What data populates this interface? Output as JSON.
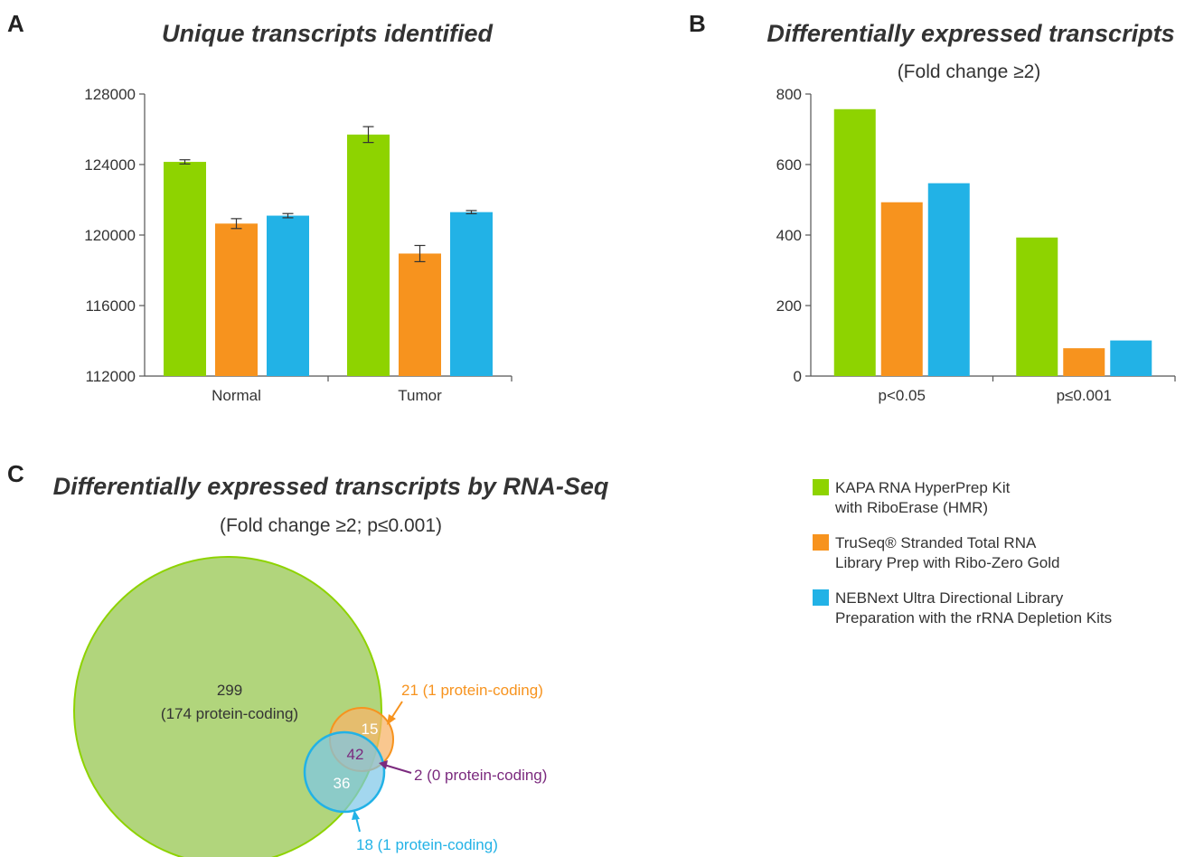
{
  "colors": {
    "kapa": "#8ed300",
    "truseq": "#f7931e",
    "nebnext": "#22b2e6",
    "purple": "#7b2a7e",
    "axis": "#555555"
  },
  "panel_a": {
    "letter": "A",
    "title": "Unique transcripts identified"
  },
  "panel_b": {
    "letter": "B",
    "title": "Differentially expressed transcripts",
    "subtitle": "(Fold change ≥2)"
  },
  "panel_c": {
    "letter": "C",
    "title": "Differentially expressed transcripts by RNA-Seq",
    "subtitle": "(Fold change ≥2; p≤0.001)",
    "kapa_count": "299",
    "kapa_sub": "(174 protein-coding)",
    "truseq_overlap": "15",
    "all_overlap": "42",
    "nebnext_overlap": "36",
    "truseq_unique": "21 (1 protein-coding)",
    "pair_only": "2 (0 protein-coding)",
    "nebnext_unique": "18 (1 protein-coding)"
  },
  "legend": [
    {
      "key": "kapa",
      "lines": [
        "KAPA RNA HyperPrep Kit",
        "with RiboErase (HMR)"
      ]
    },
    {
      "key": "truseq",
      "lines": [
        "TruSeq® Stranded Total RNA",
        "Library Prep with Ribo-Zero Gold"
      ]
    },
    {
      "key": "nebnext",
      "lines": [
        "NEBNext Ultra Directional Library",
        "Preparation with the rRNA Depletion Kits"
      ]
    }
  ],
  "chart_data": [
    {
      "type": "bar",
      "title": "Unique transcripts identified",
      "categories": [
        "Normal",
        "Tumor"
      ],
      "ylim": [
        112000,
        128000
      ],
      "yticks": [
        112000,
        116000,
        120000,
        124000,
        128000
      ],
      "series": [
        {
          "key": "kapa",
          "values": [
            124150,
            125700
          ],
          "errors": [
            120,
            450
          ]
        },
        {
          "key": "truseq",
          "values": [
            120650,
            118950
          ],
          "errors": [
            280,
            460
          ]
        },
        {
          "key": "nebnext",
          "values": [
            121100,
            121300
          ],
          "errors": [
            120,
            90
          ]
        }
      ]
    },
    {
      "type": "bar",
      "title": "Differentially expressed transcripts",
      "subtitle": "(Fold change ≥2)",
      "categories": [
        "p<0.05",
        "p≤0.001"
      ],
      "ylim": [
        0,
        800
      ],
      "yticks": [
        0,
        200,
        400,
        600,
        800
      ],
      "series": [
        {
          "key": "kapa",
          "values": [
            757,
            393
          ]
        },
        {
          "key": "truseq",
          "values": [
            493,
            79
          ]
        },
        {
          "key": "nebnext",
          "values": [
            547,
            101
          ]
        }
      ]
    }
  ]
}
